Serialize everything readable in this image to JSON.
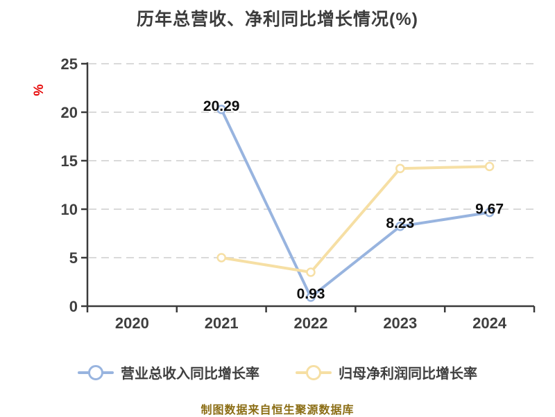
{
  "title": "历年总营收、净利同比增长情况(%)",
  "footer": "制图数据来自恒生聚源数据库",
  "colors": {
    "revenue_line": "#98b4df",
    "profit_line": "#f6dfa4",
    "axis": "#3a3a3a",
    "tick_text": "#3f3f3f",
    "grid": "#d9d9d9",
    "point_label_text": "#0d0d0d",
    "unit_label": "#e60000",
    "footer_text": "#8b6d14",
    "title_text": "#3c3c3c",
    "marker_fill": "#ffffff"
  },
  "chart_data": {
    "type": "line",
    "title": "历年总营收、净利同比增长情况(%)",
    "categories": [
      "2020",
      "2021",
      "2022",
      "2023",
      "2024"
    ],
    "series": [
      {
        "name": "营业总收入同比增长率",
        "color": "#98b4df",
        "values": [
          null,
          20.29,
          0.93,
          8.23,
          9.67
        ],
        "point_labels": [
          null,
          "20.29",
          "0.93",
          "8.23",
          "9.67"
        ]
      },
      {
        "name": "归母净利润同比增长率",
        "color": "#f6dfa4",
        "values": [
          null,
          5.0,
          3.5,
          14.2,
          14.4
        ],
        "point_labels": [
          null,
          null,
          null,
          null,
          null
        ]
      }
    ],
    "xlabel": "",
    "ylabel": "%",
    "ylim": [
      0,
      25
    ],
    "yticks": [
      0,
      5,
      10,
      15,
      20,
      25
    ],
    "grid": true,
    "grid_style": "dashed",
    "legend_position": "bottom"
  },
  "legend": {
    "items": [
      {
        "label": "营业总收入同比增长率",
        "color": "#98b4df"
      },
      {
        "label": "归母净利润同比增长率",
        "color": "#f6dfa4"
      }
    ]
  }
}
